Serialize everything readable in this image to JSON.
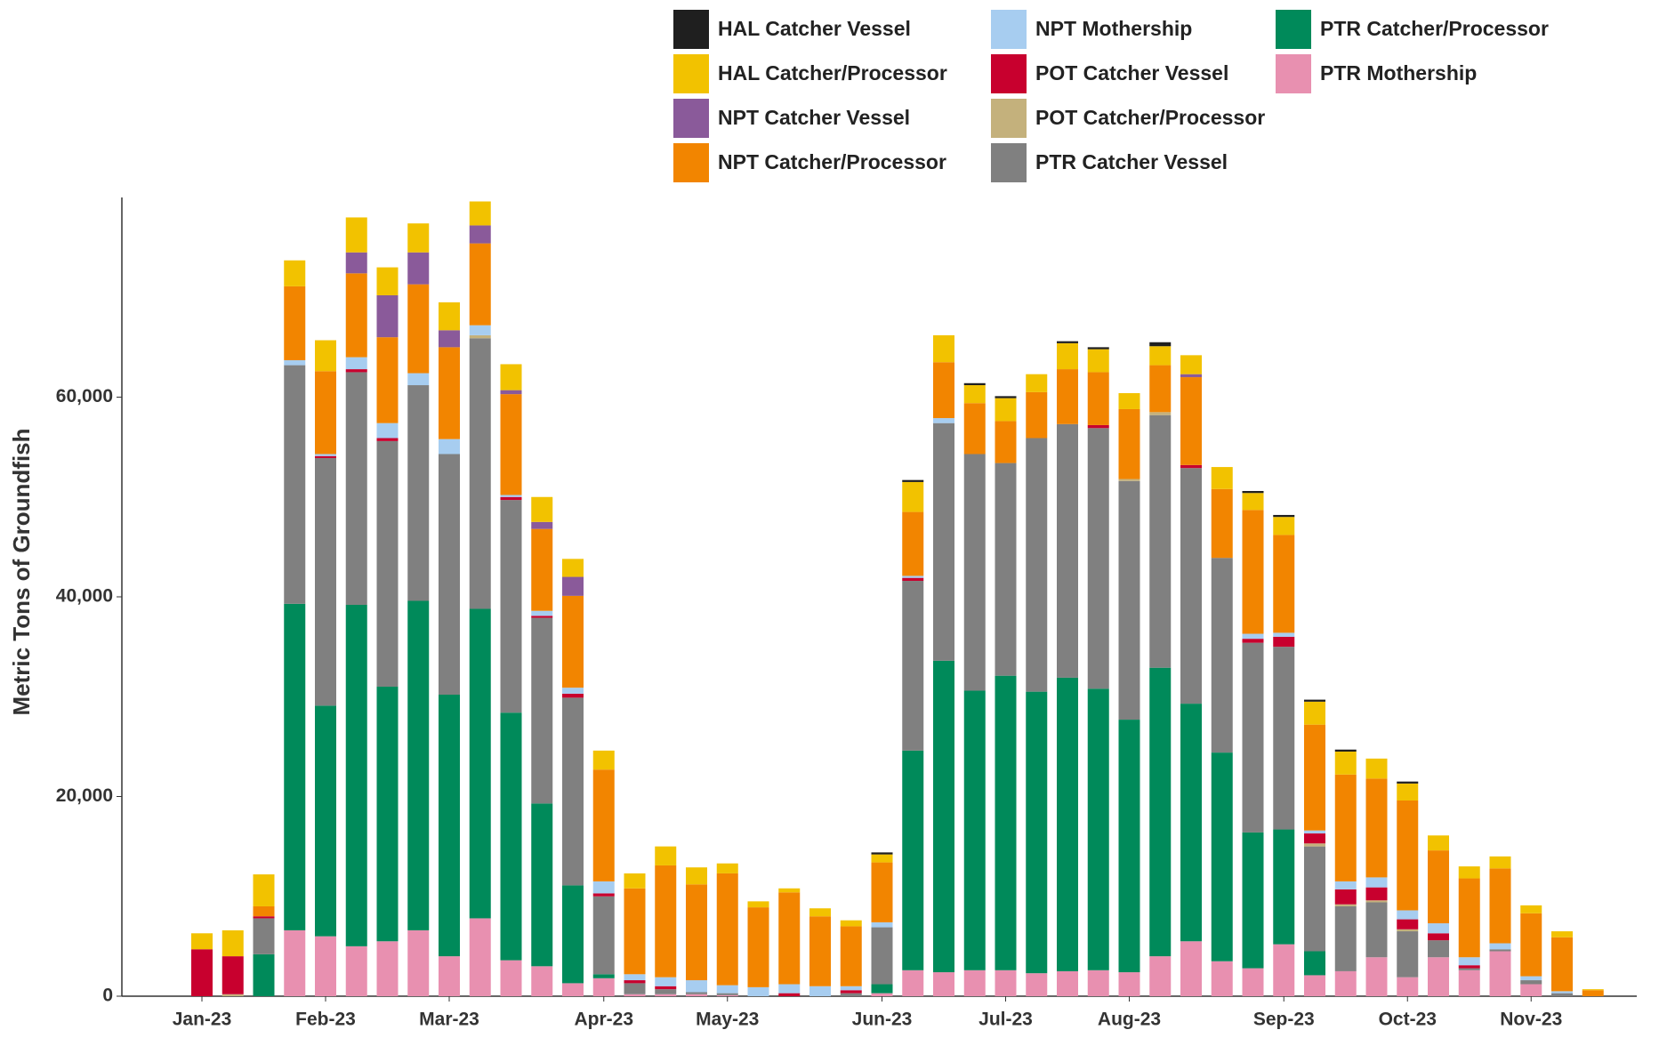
{
  "chart_data": {
    "type": "stacked_bar",
    "y_label": "Metric Tons of Groundfish",
    "legend": "top",
    "ylim": [
      0,
      80000
    ],
    "yticks": [
      0,
      {
        "value": 20000,
        "label": "20,000"
      },
      {
        "value": 40000,
        "label": "40,000"
      },
      {
        "value": 60000,
        "label": "60,000"
      }
    ],
    "categories": [
      "Jan-23",
      null,
      null,
      null,
      "Feb-23",
      null,
      null,
      null,
      "Mar-23",
      null,
      null,
      null,
      null,
      "Apr-23",
      null,
      null,
      null,
      "May-23",
      null,
      null,
      null,
      null,
      "Jun-23",
      null,
      null,
      null,
      "Jul-23",
      null,
      null,
      null,
      "Aug-23",
      null,
      null,
      null,
      null,
      "Sep-23",
      null,
      null,
      null,
      "Oct-23",
      null,
      null,
      null,
      "Nov-23",
      null,
      null
    ],
    "series": [
      {
        "name": "HAL Catcher Vessel",
        "color": "#1f1f1f",
        "values": [
          0,
          0,
          0,
          0,
          0,
          0,
          0,
          0,
          0,
          0,
          0,
          0,
          0,
          0,
          0,
          0,
          0,
          0,
          0,
          0,
          0,
          0,
          200,
          200,
          0,
          200,
          200,
          0,
          200,
          200,
          0,
          400,
          0,
          0,
          200,
          200,
          200,
          200,
          0,
          200,
          0,
          0,
          0,
          0,
          0,
          0
        ]
      },
      {
        "name": "HAL Catcher/Processor",
        "color": "#f2c200",
        "values": [
          1600,
          2600,
          3200,
          2600,
          3100,
          3500,
          2800,
          2900,
          2800,
          2400,
          2600,
          2500,
          1800,
          1900,
          1500,
          1900,
          1700,
          1000,
          600,
          400,
          800,
          600,
          800,
          3000,
          2700,
          1800,
          2300,
          1800,
          2600,
          2300,
          1600,
          1900,
          1900,
          2200,
          1700,
          1800,
          2300,
          2300,
          2000,
          1700,
          1500,
          1200,
          1200,
          800,
          600,
          100
        ]
      },
      {
        "name": "NPT Catcher Vessel",
        "color": "#8a5a9a",
        "values": [
          0,
          0,
          0,
          0,
          0,
          2100,
          4200,
          3200,
          1700,
          1800,
          400,
          700,
          1900,
          0,
          0,
          0,
          0,
          0,
          0,
          0,
          0,
          0,
          0,
          0,
          0,
          0,
          0,
          0,
          0,
          0,
          0,
          0,
          300,
          0,
          0,
          0,
          0,
          0,
          0,
          0,
          0,
          0,
          0,
          0,
          0,
          0
        ]
      },
      {
        "name": "NPT Catcher/Processor",
        "color": "#f28500",
        "values": [
          0,
          0,
          1000,
          7400,
          8300,
          8400,
          8600,
          8900,
          9200,
          8200,
          10100,
          8200,
          9200,
          11200,
          8600,
          11200,
          9600,
          11200,
          8000,
          9200,
          7000,
          6000,
          6000,
          6400,
          5600,
          5100,
          4200,
          4600,
          5500,
          5300,
          7000,
          4700,
          8800,
          6900,
          12400,
          9800,
          10600,
          10700,
          9900,
          11000,
          7300,
          7900,
          7500,
          6300,
          5400,
          600
        ]
      },
      {
        "name": "NPT Mothership",
        "color": "#a7cdf0",
        "values": [
          0,
          0,
          0,
          500,
          200,
          1200,
          1500,
          1200,
          1500,
          1000,
          200,
          500,
          600,
          1200,
          600,
          900,
          1200,
          800,
          900,
          900,
          1000,
          400,
          500,
          200,
          500,
          0,
          0,
          0,
          0,
          0,
          0,
          0,
          0,
          0,
          500,
          400,
          300,
          800,
          1000,
          900,
          1000,
          800,
          600,
          400,
          200,
          0
        ]
      },
      {
        "name": "POT Catcher Vessel",
        "color": "#c8002e",
        "values": [
          4700,
          3800,
          200,
          0,
          200,
          300,
          300,
          0,
          0,
          0,
          300,
          200,
          400,
          300,
          300,
          300,
          0,
          0,
          0,
          300,
          0,
          300,
          0,
          300,
          0,
          0,
          0,
          0,
          0,
          300,
          0,
          0,
          300,
          0,
          400,
          1000,
          1000,
          1500,
          1300,
          1000,
          700,
          300,
          0,
          0,
          0,
          0
        ]
      },
      {
        "name": "POT Catcher/Processor",
        "color": "#c4b17c",
        "values": [
          0,
          200,
          0,
          0,
          0,
          0,
          0,
          0,
          0,
          300,
          0,
          0,
          0,
          0,
          0,
          0,
          0,
          0,
          0,
          0,
          0,
          0,
          0,
          0,
          0,
          0,
          0,
          0,
          0,
          0,
          200,
          300,
          0,
          0,
          0,
          0,
          300,
          200,
          200,
          200,
          0,
          0,
          0,
          0,
          0,
          0
        ]
      },
      {
        "name": "PTR Catcher Vessel",
        "color": "#808080",
        "values": [
          0,
          0,
          3600,
          23900,
          24800,
          23300,
          24600,
          21600,
          24100,
          27100,
          21300,
          18600,
          18800,
          7800,
          1100,
          500,
          200,
          200,
          0,
          0,
          0,
          300,
          5700,
          17000,
          23800,
          23700,
          21300,
          25400,
          25400,
          26100,
          23900,
          25300,
          23600,
          19500,
          19000,
          18300,
          10500,
          6500,
          5500,
          4600,
          1700,
          200,
          200,
          400,
          300,
          0
        ]
      },
      {
        "name": "PTR Catcher/Processor",
        "color": "#008a5a",
        "values": [
          0,
          0,
          4200,
          32700,
          23100,
          34200,
          25500,
          33000,
          26200,
          31000,
          24800,
          16300,
          9800,
          400,
          0,
          0,
          0,
          0,
          0,
          0,
          0,
          0,
          900,
          22000,
          31200,
          28000,
          29500,
          28200,
          29400,
          28200,
          25300,
          28900,
          23800,
          20900,
          13600,
          11500,
          2400,
          0,
          0,
          0,
          0,
          0,
          0,
          0,
          0,
          0
        ]
      },
      {
        "name": "PTR Mothership",
        "color": "#e890b0",
        "values": [
          0,
          0,
          0,
          6600,
          6000,
          5000,
          5500,
          6600,
          4000,
          7800,
          3600,
          3000,
          1300,
          1800,
          200,
          200,
          200,
          100,
          0,
          0,
          0,
          0,
          300,
          2600,
          2400,
          2600,
          2600,
          2300,
          2500,
          2600,
          2400,
          4000,
          5500,
          3500,
          2800,
          5200,
          2100,
          2500,
          3900,
          1900,
          3900,
          2600,
          4500,
          1200,
          0,
          0
        ]
      }
    ]
  }
}
